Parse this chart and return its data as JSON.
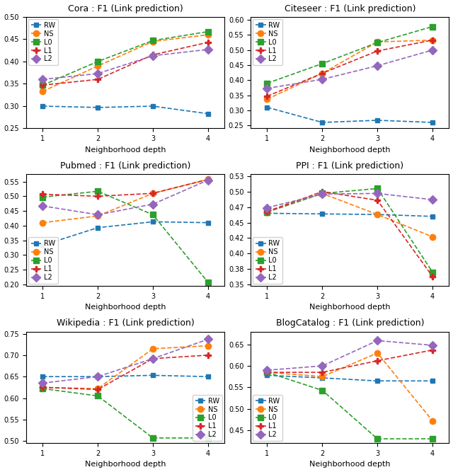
{
  "subplots": [
    {
      "title": "Cora : F1 (Link prediction)",
      "xlabel": "Neighborhood depth",
      "x": [
        1,
        2,
        3,
        4
      ],
      "ylim": [
        0.25,
        0.5
      ],
      "yticks": [
        0.25,
        0.3,
        0.35,
        0.4,
        0.45,
        0.5
      ],
      "series": {
        "RW": [
          0.3,
          0.297,
          0.3,
          0.283
        ],
        "NS": [
          0.333,
          0.39,
          0.445,
          0.46
        ],
        "L0": [
          0.347,
          0.4,
          0.447,
          0.467
        ],
        "L1": [
          0.347,
          0.36,
          0.415,
          0.443
        ],
        "L2": [
          0.36,
          0.373,
          0.413,
          0.427
        ]
      },
      "legend_loc": "upper left"
    },
    {
      "title": "Citeseer : F1 (Link prediction)",
      "xlabel": "Neighborhood depth",
      "x": [
        1,
        2,
        3,
        4
      ],
      "ylim": [
        0.24,
        0.61
      ],
      "yticks": [
        0.25,
        0.3,
        0.35,
        0.4,
        0.45,
        0.5,
        0.55,
        0.6
      ],
      "series": {
        "RW": [
          0.31,
          0.26,
          0.267,
          0.26
        ],
        "NS": [
          0.337,
          0.423,
          0.527,
          0.533
        ],
        "L0": [
          0.39,
          0.455,
          0.525,
          0.578
        ],
        "L1": [
          0.347,
          0.423,
          0.497,
          0.533
        ],
        "L2": [
          0.373,
          0.403,
          0.448,
          0.5
        ]
      },
      "legend_loc": "upper left"
    },
    {
      "title": "Pubmed : F1 (Link prediction)",
      "xlabel": "Neighborhood depth",
      "x": [
        1,
        2,
        3,
        4
      ],
      "ylim": [
        0.195,
        0.575
      ],
      "yticks": [
        0.2,
        0.25,
        0.3,
        0.35,
        0.4,
        0.45,
        0.5,
        0.55
      ],
      "series": {
        "RW": [
          0.333,
          0.393,
          0.413,
          0.41
        ],
        "NS": [
          0.41,
          0.433,
          0.51,
          0.558
        ],
        "L0": [
          0.497,
          0.517,
          0.437,
          0.207
        ],
        "L1": [
          0.507,
          0.5,
          0.51,
          0.557
        ],
        "L2": [
          0.467,
          0.437,
          0.473,
          0.555
        ]
      },
      "legend_loc": "lower left"
    },
    {
      "title": "PPI : F1 (Link prediction)",
      "xlabel": "Neighborhood depth",
      "x": [
        1,
        2,
        3,
        4
      ],
      "ylim": [
        0.348,
        0.528
      ],
      "yticks": [
        0.35,
        0.375,
        0.4,
        0.425,
        0.45,
        0.475,
        0.5,
        0.525
      ],
      "series": {
        "RW": [
          0.465,
          0.464,
          0.463,
          0.46
        ],
        "NS": [
          0.467,
          0.497,
          0.463,
          0.427
        ],
        "L0": [
          0.467,
          0.497,
          0.505,
          0.37
        ],
        "L1": [
          0.468,
          0.5,
          0.486,
          0.363
        ],
        "L2": [
          0.474,
          0.496,
          0.497,
          0.487
        ]
      },
      "legend_loc": "lower left"
    },
    {
      "title": "Wikipedia : F1 (Link prediction)",
      "xlabel": "Neighborhood depth",
      "x": [
        1,
        2,
        3,
        4
      ],
      "ylim": [
        0.495,
        0.755
      ],
      "yticks": [
        0.5,
        0.55,
        0.6,
        0.65,
        0.7,
        0.75
      ],
      "series": {
        "RW": [
          0.65,
          0.65,
          0.653,
          0.65
        ],
        "NS": [
          0.625,
          0.622,
          0.715,
          0.722
        ],
        "L0": [
          0.622,
          0.605,
          0.507,
          0.507
        ],
        "L1": [
          0.625,
          0.62,
          0.692,
          0.7
        ],
        "L2": [
          0.635,
          0.65,
          0.692,
          0.737
        ]
      },
      "legend_loc": "lower right"
    },
    {
      "title": "BlogCatalog : F1 (Link prediction)",
      "xlabel": "Neighborhood depth",
      "x": [
        1,
        2,
        3,
        4
      ],
      "ylim": [
        0.42,
        0.68
      ],
      "yticks": [
        0.45,
        0.5,
        0.55,
        0.6,
        0.65
      ],
      "series": {
        "RW": [
          0.578,
          0.572,
          0.565,
          0.565
        ],
        "NS": [
          0.585,
          0.575,
          0.63,
          0.472
        ],
        "L0": [
          0.585,
          0.543,
          0.43,
          0.43
        ],
        "L1": [
          0.585,
          0.585,
          0.612,
          0.637
        ],
        "L2": [
          0.59,
          0.6,
          0.659,
          0.648
        ]
      },
      "legend_loc": "lower left"
    }
  ],
  "series_styles": {
    "RW": {
      "color": "#1f77b4",
      "marker": "s",
      "markersize": 5
    },
    "NS": {
      "color": "#ff7f0e",
      "marker": "o",
      "markersize": 6
    },
    "L0": {
      "color": "#2ca02c",
      "marker": "s",
      "markersize": 6
    },
    "L1": {
      "color": "#d62728",
      "marker": "P",
      "markersize": 6
    },
    "L2": {
      "color": "#9467bd",
      "marker": "D",
      "markersize": 6
    }
  },
  "linestyle": "--",
  "linewidth": 1.2
}
